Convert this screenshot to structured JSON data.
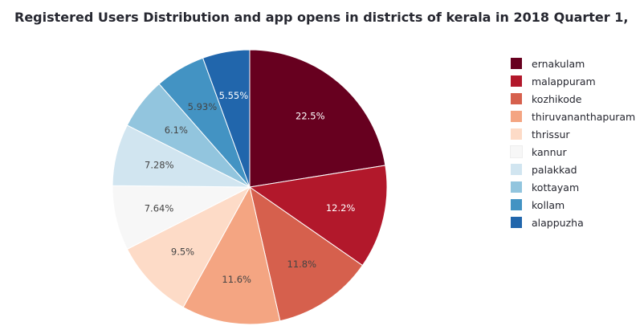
{
  "chart_data": {
    "type": "pie",
    "title": "Registered Users Distribution and app opens in districts of kerala in 2018 Quarter 1,",
    "categories": [
      "ernakulam",
      "malappuram",
      "kozhikode",
      "thiruvananthapuram",
      "thrissur",
      "kannur",
      "palakkad",
      "kottayam",
      "kollam",
      "alappuzha"
    ],
    "values": [
      22.5,
      12.2,
      11.8,
      11.6,
      9.5,
      7.64,
      7.28,
      6.1,
      5.93,
      5.55
    ],
    "labels": [
      "22.5%",
      "12.2%",
      "11.8%",
      "11.6%",
      "9.5%",
      "7.64%",
      "7.28%",
      "6.1%",
      "5.93%",
      "5.55%"
    ],
    "colors": [
      "#67001f",
      "#b2182b",
      "#d6604d",
      "#f4a582",
      "#fddbc7",
      "#f7f7f7",
      "#d1e5f0",
      "#92c5de",
      "#4393c3",
      "#2166ac"
    ],
    "label_colors": [
      "#ffffff",
      "#ffffff",
      "#444444",
      "#444444",
      "#444444",
      "#444444",
      "#444444",
      "#444444",
      "#444444",
      "#ffffff"
    ],
    "legend": {
      "position": "right",
      "entries": [
        "ernakulam",
        "malappuram",
        "kozhikode",
        "thiruvananthapuram",
        "thrissur",
        "kannur",
        "palakkad",
        "kottayam",
        "kollam",
        "alappuzha"
      ]
    }
  }
}
